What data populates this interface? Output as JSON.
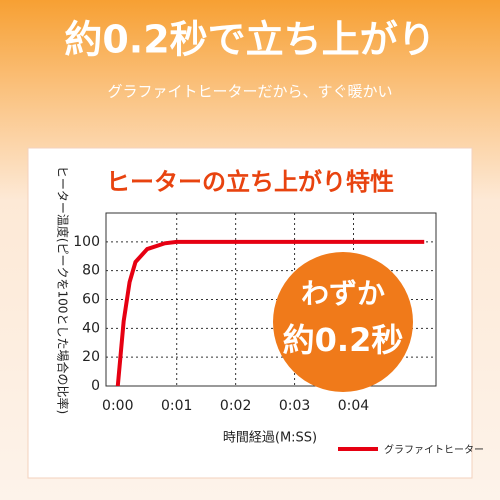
{
  "header": {
    "title": "約0.2秒で立ち上がり",
    "subtitle": "グラファイトヒーターだから、すぐ暖かい"
  },
  "badge": {
    "line1": "わずか",
    "line2": "約0.2秒"
  },
  "chart_data": {
    "type": "line",
    "title": "ヒーターの立ち上がり特性",
    "y_label": "ヒーター温度(ピークを100とした場合の比率)",
    "x_label": "時間経過(M:SS)",
    "x": [
      0,
      0.1,
      0.2,
      0.3,
      0.5,
      0.8,
      1,
      2,
      3,
      4,
      5.2
    ],
    "series": [
      {
        "name": "グラファイトヒーター",
        "color": "#e60012",
        "values": [
          0,
          45,
          72,
          86,
          95,
          99,
          100,
          100,
          100,
          100,
          100
        ]
      }
    ],
    "xlim": [
      -0.2,
      5.4
    ],
    "xticks": [
      {
        "value": 0,
        "label": "0:00"
      },
      {
        "value": 1,
        "label": "0:01"
      },
      {
        "value": 2,
        "label": "0:02"
      },
      {
        "value": 3,
        "label": "0:03"
      },
      {
        "value": 4,
        "label": "0:04"
      }
    ],
    "ylim": [
      0,
      120
    ],
    "yticks": [
      0,
      20,
      40,
      60,
      80,
      100
    ],
    "grid": true
  }
}
